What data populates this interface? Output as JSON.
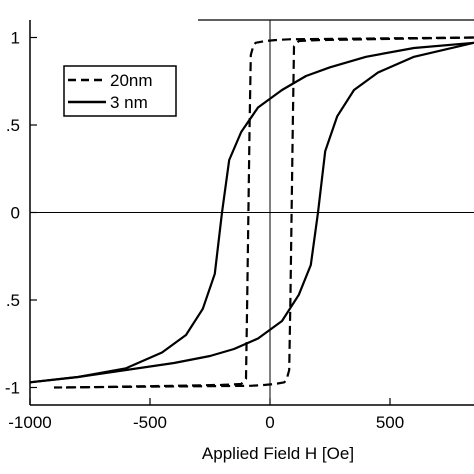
{
  "chart_data": {
    "type": "line",
    "title": "",
    "xlabel": "Applied Field H [Oe]",
    "ylabel": "",
    "xlim": [
      -1000,
      850
    ],
    "ylim": [
      -1.1,
      1.1
    ],
    "x_ticks": [
      -1000,
      -500,
      0,
      500
    ],
    "x_tick_labels": [
      "-1000",
      "-500",
      "0",
      "500"
    ],
    "y_ticks": [
      1,
      0.5,
      0,
      -0.5,
      -1
    ],
    "y_tick_labels": [
      "1",
      ".5",
      "0",
      ".5",
      "-1"
    ],
    "grid": false,
    "legend_position": "upper-left",
    "series": [
      {
        "name": "20nm",
        "style": "dashed",
        "branches": [
          {
            "x": [
              850,
              400,
              200,
              120,
              100,
              95,
              90,
              85,
              80,
              70,
              60,
              20,
              -20,
              -80,
              -900
            ],
            "y": [
              1.0,
              0.99,
              0.985,
              0.98,
              0.95,
              0.5,
              0.0,
              -0.5,
              -0.9,
              -0.95,
              -0.97,
              -0.98,
              -0.985,
              -0.99,
              -1.0
            ]
          },
          {
            "x": [
              -850,
              -400,
              -200,
              -120,
              -100,
              -95,
              -90,
              -85,
              -80,
              -70,
              -60,
              -20,
              20,
              80,
              850
            ],
            "y": [
              -1.0,
              -0.99,
              -0.985,
              -0.98,
              -0.95,
              -0.5,
              0.0,
              0.5,
              0.9,
              0.95,
              0.97,
              0.98,
              0.985,
              0.99,
              1.0
            ]
          }
        ]
      },
      {
        "name": "3 nm",
        "style": "solid",
        "branches": [
          {
            "x": [
              850,
              600,
              400,
              250,
              150,
              50,
              -50,
              -120,
              -170,
              -200,
              -230,
              -280,
              -350,
              -450,
              -600,
              -800,
              -1000
            ],
            "y": [
              0.97,
              0.94,
              0.89,
              0.83,
              0.78,
              0.7,
              0.6,
              0.46,
              0.3,
              0.0,
              -0.35,
              -0.55,
              -0.7,
              -0.8,
              -0.89,
              -0.94,
              -0.97
            ]
          },
          {
            "x": [
              -1000,
              -800,
              -600,
              -400,
              -250,
              -150,
              -50,
              50,
              120,
              170,
              200,
              230,
              280,
              350,
              450,
              600,
              850
            ],
            "y": [
              -0.97,
              -0.94,
              -0.9,
              -0.86,
              -0.82,
              -0.78,
              -0.72,
              -0.62,
              -0.47,
              -0.3,
              0.0,
              0.35,
              0.55,
              0.7,
              0.8,
              0.89,
              0.97
            ]
          }
        ]
      }
    ]
  }
}
